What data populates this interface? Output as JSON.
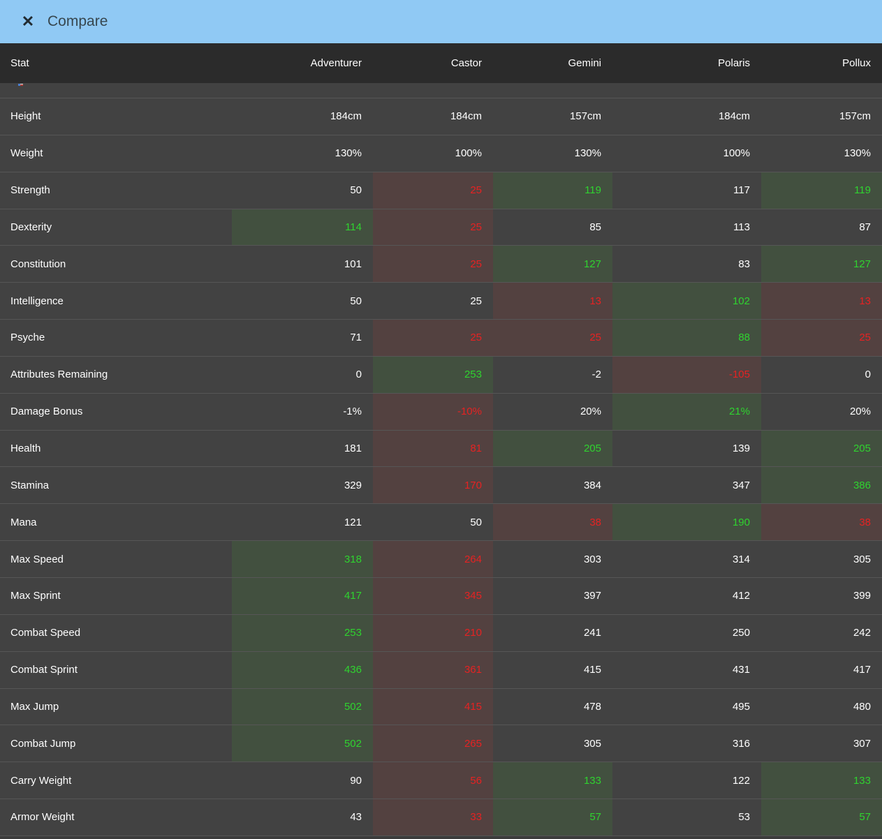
{
  "titlebar": {
    "title": "Compare",
    "close_icon": "✕"
  },
  "colors": {
    "titlebar_bg": "#90c9f4",
    "titlebar_text": "#37474f",
    "header_bg": "#2b2b2b",
    "row_bg": "#424242",
    "divider": "#565656",
    "best_bg": "#42503f",
    "best_text": "#2fd32f",
    "worst_bg": "#534140",
    "worst_text": "#e62222"
  },
  "table": {
    "columns": [
      "Stat",
      "Adventurer",
      "Castor",
      "Gemini",
      "Polaris",
      "Pollux"
    ],
    "clipped_row_icon": "clipped-row-fragment-icon",
    "rows": [
      {
        "stat": "Height",
        "values": [
          {
            "text": "184cm",
            "state": "normal"
          },
          {
            "text": "184cm",
            "state": "normal"
          },
          {
            "text": "157cm",
            "state": "normal"
          },
          {
            "text": "184cm",
            "state": "normal"
          },
          {
            "text": "157cm",
            "state": "normal"
          }
        ]
      },
      {
        "stat": "Weight",
        "values": [
          {
            "text": "130%",
            "state": "normal"
          },
          {
            "text": "100%",
            "state": "normal"
          },
          {
            "text": "130%",
            "state": "normal"
          },
          {
            "text": "100%",
            "state": "normal"
          },
          {
            "text": "130%",
            "state": "normal"
          }
        ]
      },
      {
        "stat": "Strength",
        "values": [
          {
            "text": "50",
            "state": "normal"
          },
          {
            "text": "25",
            "state": "worst"
          },
          {
            "text": "119",
            "state": "best"
          },
          {
            "text": "117",
            "state": "normal"
          },
          {
            "text": "119",
            "state": "best"
          }
        ]
      },
      {
        "stat": "Dexterity",
        "values": [
          {
            "text": "114",
            "state": "best"
          },
          {
            "text": "25",
            "state": "worst"
          },
          {
            "text": "85",
            "state": "normal"
          },
          {
            "text": "113",
            "state": "normal"
          },
          {
            "text": "87",
            "state": "normal"
          }
        ]
      },
      {
        "stat": "Constitution",
        "values": [
          {
            "text": "101",
            "state": "normal"
          },
          {
            "text": "25",
            "state": "worst"
          },
          {
            "text": "127",
            "state": "best"
          },
          {
            "text": "83",
            "state": "normal"
          },
          {
            "text": "127",
            "state": "best"
          }
        ]
      },
      {
        "stat": "Intelligence",
        "values": [
          {
            "text": "50",
            "state": "normal"
          },
          {
            "text": "25",
            "state": "normal"
          },
          {
            "text": "13",
            "state": "worst"
          },
          {
            "text": "102",
            "state": "best"
          },
          {
            "text": "13",
            "state": "worst"
          }
        ]
      },
      {
        "stat": "Psyche",
        "values": [
          {
            "text": "71",
            "state": "normal"
          },
          {
            "text": "25",
            "state": "worst"
          },
          {
            "text": "25",
            "state": "worst"
          },
          {
            "text": "88",
            "state": "best"
          },
          {
            "text": "25",
            "state": "worst"
          }
        ]
      },
      {
        "stat": "Attributes Remaining",
        "values": [
          {
            "text": "0",
            "state": "normal"
          },
          {
            "text": "253",
            "state": "best"
          },
          {
            "text": "-2",
            "state": "normal"
          },
          {
            "text": "-105",
            "state": "worst"
          },
          {
            "text": "0",
            "state": "normal"
          }
        ]
      },
      {
        "stat": "Damage Bonus",
        "values": [
          {
            "text": "-1%",
            "state": "normal"
          },
          {
            "text": "-10%",
            "state": "worst"
          },
          {
            "text": "20%",
            "state": "normal"
          },
          {
            "text": "21%",
            "state": "best"
          },
          {
            "text": "20%",
            "state": "normal"
          }
        ]
      },
      {
        "stat": "Health",
        "values": [
          {
            "text": "181",
            "state": "normal"
          },
          {
            "text": "81",
            "state": "worst"
          },
          {
            "text": "205",
            "state": "best"
          },
          {
            "text": "139",
            "state": "normal"
          },
          {
            "text": "205",
            "state": "best"
          }
        ]
      },
      {
        "stat": "Stamina",
        "values": [
          {
            "text": "329",
            "state": "normal"
          },
          {
            "text": "170",
            "state": "worst"
          },
          {
            "text": "384",
            "state": "normal"
          },
          {
            "text": "347",
            "state": "normal"
          },
          {
            "text": "386",
            "state": "best"
          }
        ]
      },
      {
        "stat": "Mana",
        "values": [
          {
            "text": "121",
            "state": "normal"
          },
          {
            "text": "50",
            "state": "normal"
          },
          {
            "text": "38",
            "state": "worst"
          },
          {
            "text": "190",
            "state": "best"
          },
          {
            "text": "38",
            "state": "worst"
          }
        ]
      },
      {
        "stat": "Max Speed",
        "values": [
          {
            "text": "318",
            "state": "best"
          },
          {
            "text": "264",
            "state": "worst"
          },
          {
            "text": "303",
            "state": "normal"
          },
          {
            "text": "314",
            "state": "normal"
          },
          {
            "text": "305",
            "state": "normal"
          }
        ]
      },
      {
        "stat": "Max Sprint",
        "values": [
          {
            "text": "417",
            "state": "best"
          },
          {
            "text": "345",
            "state": "worst"
          },
          {
            "text": "397",
            "state": "normal"
          },
          {
            "text": "412",
            "state": "normal"
          },
          {
            "text": "399",
            "state": "normal"
          }
        ]
      },
      {
        "stat": "Combat Speed",
        "values": [
          {
            "text": "253",
            "state": "best"
          },
          {
            "text": "210",
            "state": "worst"
          },
          {
            "text": "241",
            "state": "normal"
          },
          {
            "text": "250",
            "state": "normal"
          },
          {
            "text": "242",
            "state": "normal"
          }
        ]
      },
      {
        "stat": "Combat Sprint",
        "values": [
          {
            "text": "436",
            "state": "best"
          },
          {
            "text": "361",
            "state": "worst"
          },
          {
            "text": "415",
            "state": "normal"
          },
          {
            "text": "431",
            "state": "normal"
          },
          {
            "text": "417",
            "state": "normal"
          }
        ]
      },
      {
        "stat": "Max Jump",
        "values": [
          {
            "text": "502",
            "state": "best"
          },
          {
            "text": "415",
            "state": "worst"
          },
          {
            "text": "478",
            "state": "normal"
          },
          {
            "text": "495",
            "state": "normal"
          },
          {
            "text": "480",
            "state": "normal"
          }
        ]
      },
      {
        "stat": "Combat Jump",
        "values": [
          {
            "text": "502",
            "state": "best"
          },
          {
            "text": "265",
            "state": "worst"
          },
          {
            "text": "305",
            "state": "normal"
          },
          {
            "text": "316",
            "state": "normal"
          },
          {
            "text": "307",
            "state": "normal"
          }
        ]
      },
      {
        "stat": "Carry Weight",
        "values": [
          {
            "text": "90",
            "state": "normal"
          },
          {
            "text": "56",
            "state": "worst"
          },
          {
            "text": "133",
            "state": "best"
          },
          {
            "text": "122",
            "state": "normal"
          },
          {
            "text": "133",
            "state": "best"
          }
        ]
      },
      {
        "stat": "Armor Weight",
        "values": [
          {
            "text": "43",
            "state": "normal"
          },
          {
            "text": "33",
            "state": "worst"
          },
          {
            "text": "57",
            "state": "best"
          },
          {
            "text": "53",
            "state": "normal"
          },
          {
            "text": "57",
            "state": "best"
          }
        ]
      }
    ]
  }
}
